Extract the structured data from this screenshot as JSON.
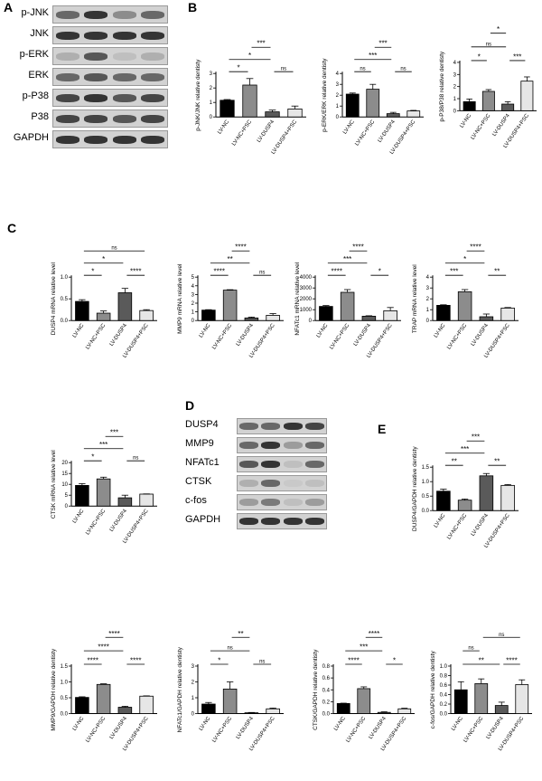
{
  "panels": {
    "A": "A",
    "B": "B",
    "C": "C",
    "D": "D",
    "E": "E"
  },
  "blotA": {
    "rows": [
      "p-JNK",
      "JNK",
      "p-ERK",
      "ERK",
      "p-P38",
      "P38",
      "GAPDH"
    ],
    "lanes": [
      "LV-NC",
      "LV-NC+PSC",
      "LV-DUSP4",
      "LV-DUSP4+PSC"
    ],
    "band_intensity": [
      [
        0.6,
        0.9,
        0.4,
        0.6
      ],
      [
        0.9,
        0.9,
        0.9,
        0.9
      ],
      [
        0.2,
        0.7,
        0.1,
        0.2
      ],
      [
        0.6,
        0.7,
        0.6,
        0.6
      ],
      [
        0.8,
        0.9,
        0.7,
        0.8
      ],
      [
        0.8,
        0.8,
        0.7,
        0.8
      ],
      [
        0.9,
        0.9,
        0.9,
        0.9
      ]
    ]
  },
  "blotD": {
    "rows": [
      "DUSP4",
      "MMP9",
      "NFATc1",
      "CTSK",
      "c-fos",
      "GAPDH"
    ],
    "lanes": [
      "LV-NC",
      "LV-NC+PSC",
      "LV-DUSP4",
      "LV-DUSP4+PSC"
    ],
    "band_intensity": [
      [
        0.6,
        0.6,
        0.9,
        0.8
      ],
      [
        0.6,
        0.9,
        0.3,
        0.6
      ],
      [
        0.7,
        0.9,
        0.1,
        0.6
      ],
      [
        0.2,
        0.6,
        0.05,
        0.1
      ],
      [
        0.3,
        0.5,
        0.1,
        0.3
      ],
      [
        0.9,
        0.9,
        0.9,
        0.9
      ]
    ]
  },
  "chart_data": [
    {
      "id": "b1",
      "type": "bar",
      "ylabel": "p-JNK/JNK relative dentisty",
      "categories": [
        "LV-NC",
        "LV-NC+PSC",
        "LV-DUSP4",
        "LV-DUSP4+PSC"
      ],
      "values": [
        1.15,
        2.2,
        0.35,
        0.55
      ],
      "errors": [
        0.05,
        0.45,
        0.12,
        0.2
      ],
      "ylim": [
        0,
        3
      ],
      "yticks": [
        "0",
        "1",
        "2",
        "3"
      ],
      "sig": [
        [
          "*",
          0,
          1,
          1
        ],
        [
          "*",
          0,
          2,
          2
        ],
        [
          "***",
          1,
          2,
          3
        ],
        [
          "ns",
          2,
          3,
          1
        ]
      ]
    },
    {
      "id": "b2",
      "type": "bar",
      "ylabel": "p-ERK/ERK relative dentisty",
      "categories": [
        "LV-NC",
        "LV-NC+PSC",
        "LV-DUSP4",
        "LV-DUSP4+PSC"
      ],
      "values": [
        2.1,
        2.55,
        0.3,
        0.55
      ],
      "errors": [
        0.1,
        0.45,
        0.12,
        0.05
      ],
      "ylim": [
        0,
        4
      ],
      "yticks": [
        "0",
        "1",
        "2",
        "3",
        "4"
      ],
      "sig": [
        [
          "ns",
          0,
          1,
          1
        ],
        [
          "***",
          0,
          2,
          2
        ],
        [
          "***",
          1,
          2,
          3
        ],
        [
          "ns",
          2,
          3,
          1
        ]
      ]
    },
    {
      "id": "b3",
      "type": "bar",
      "ylabel": "p-P38/P38 relative dentisty",
      "categories": [
        "LV-NC",
        "LV-NC+PSC",
        "LV-DUSP4",
        "LV-DUSP4+PSC"
      ],
      "values": [
        0.75,
        1.6,
        0.55,
        2.45
      ],
      "errors": [
        0.22,
        0.15,
        0.2,
        0.35
      ],
      "ylim": [
        0,
        4
      ],
      "yticks": [
        "0",
        "1",
        "2",
        "3",
        "4"
      ],
      "sig": [
        [
          "*",
          0,
          1,
          1
        ],
        [
          "ns",
          0,
          2,
          2
        ],
        [
          "*",
          1,
          2,
          3
        ],
        [
          "***",
          2,
          3,
          1
        ]
      ]
    },
    {
      "id": "c1",
      "type": "bar",
      "ylabel": "DUSP4 mRNA relative level",
      "categories": [
        "LV-NC",
        "LV-NC+PSC",
        "LV-DUSP4",
        "LV-DUSP4+PSC"
      ],
      "values": [
        0.44,
        0.17,
        0.64,
        0.23
      ],
      "errors": [
        0.04,
        0.05,
        0.1,
        0.02
      ],
      "ylim": [
        0,
        1.0
      ],
      "yticks": [
        "0.0",
        "0.5",
        "1.0"
      ],
      "sig": [
        [
          "*",
          0,
          1,
          1
        ],
        [
          "*",
          0,
          2,
          2
        ],
        [
          "ns",
          0,
          3,
          3
        ],
        [
          "****",
          2,
          3,
          1
        ]
      ]
    },
    {
      "id": "c2",
      "type": "bar",
      "ylabel": "MMP9 mRNA relative level",
      "categories": [
        "LV-NC",
        "LV-NC+PSC",
        "LV-DUSP4",
        "LV-DUSP4+PSC"
      ],
      "values": [
        1.2,
        3.5,
        0.3,
        0.6
      ],
      "errors": [
        0.05,
        0.05,
        0.1,
        0.2
      ],
      "ylim": [
        0,
        5
      ],
      "yticks": [
        "0",
        "1",
        "2",
        "3",
        "4",
        "5"
      ],
      "sig": [
        [
          "****",
          0,
          1,
          1
        ],
        [
          "**",
          0,
          2,
          2
        ],
        [
          "****",
          1,
          2,
          3
        ],
        [
          "ns",
          2,
          3,
          1
        ]
      ]
    },
    {
      "id": "c3",
      "type": "bar",
      "ylabel": "NFATc1 mRNA relative level",
      "categories": [
        "LV-NC",
        "LV-NC+PSC",
        "LV-DUSP4",
        "LV-DUSP4+PSC"
      ],
      "values": [
        1300,
        2600,
        400,
        900
      ],
      "errors": [
        80,
        250,
        40,
        300
      ],
      "ylim": [
        0,
        4000
      ],
      "yticks": [
        "0",
        "1000",
        "2000",
        "3000",
        "4000"
      ],
      "sig": [
        [
          "****",
          0,
          1,
          1
        ],
        [
          "***",
          0,
          2,
          2
        ],
        [
          "****",
          1,
          2,
          3
        ],
        [
          "*",
          2,
          3,
          1
        ]
      ]
    },
    {
      "id": "c4",
      "type": "bar",
      "ylabel": "TRAP mRNA relative level",
      "categories": [
        "LV-NC",
        "LV-NC+PSC",
        "LV-DUSP4",
        "LV-DUSP4+PSC"
      ],
      "values": [
        1.4,
        2.65,
        0.35,
        1.15
      ],
      "errors": [
        0.05,
        0.2,
        0.25,
        0.05
      ],
      "ylim": [
        0,
        4
      ],
      "yticks": [
        "0",
        "1",
        "2",
        "3",
        "4"
      ],
      "sig": [
        [
          "***",
          0,
          1,
          1
        ],
        [
          "*",
          0,
          2,
          2
        ],
        [
          "****",
          1,
          2,
          3
        ],
        [
          "**",
          2,
          3,
          1
        ]
      ]
    },
    {
      "id": "c5",
      "type": "bar",
      "ylabel": "CTSK mRNA relative level",
      "categories": [
        "LV-NC",
        "LV-NC+PSC",
        "LV-DUSP4",
        "LV-DUSP4+PSC"
      ],
      "values": [
        9.5,
        12.5,
        3.8,
        5.5
      ],
      "errors": [
        0.8,
        0.8,
        1.2,
        0.1
      ],
      "ylim": [
        0,
        20
      ],
      "yticks": [
        "0",
        "5",
        "10",
        "15",
        "20"
      ],
      "sig": [
        [
          "*",
          0,
          1,
          1
        ],
        [
          "***",
          0,
          2,
          2
        ],
        [
          "***",
          1,
          2,
          3
        ],
        [
          "ns",
          2,
          3,
          1
        ]
      ]
    },
    {
      "id": "e1",
      "type": "bar",
      "ylabel": "DUSP4/GAPDH relative dentisty",
      "categories": [
        "LV-NC",
        "LV-NC+PSC",
        "LV-DUSP4",
        "LV-DUSP4+PSC"
      ],
      "values": [
        0.67,
        0.36,
        1.2,
        0.87
      ],
      "errors": [
        0.07,
        0.04,
        0.08,
        0.03
      ],
      "ylim": [
        0,
        1.5
      ],
      "yticks": [
        "0.0",
        "0.5",
        "1.0",
        "1.5"
      ],
      "sig": [
        [
          "**",
          0,
          1,
          1
        ],
        [
          "***",
          0,
          2,
          2
        ],
        [
          "***",
          1,
          2,
          3
        ],
        [
          "**",
          2,
          3,
          1
        ]
      ]
    },
    {
      "id": "f1",
      "type": "bar",
      "ylabel": "MMP9/GAPDH relative dentisty",
      "categories": [
        "LV-NC",
        "LV-NC+PSC",
        "LV-DUSP4",
        "LV-DUSP4+PSC"
      ],
      "values": [
        0.51,
        0.92,
        0.2,
        0.55
      ],
      "errors": [
        0.02,
        0.02,
        0.03,
        0.01
      ],
      "ylim": [
        0,
        1.5
      ],
      "yticks": [
        "0.0",
        "0.5",
        "1.0",
        "1.5"
      ],
      "sig": [
        [
          "****",
          0,
          1,
          1
        ],
        [
          "****",
          0,
          2,
          2
        ],
        [
          "****",
          1,
          2,
          3
        ],
        [
          "****",
          2,
          3,
          1
        ]
      ]
    },
    {
      "id": "f2",
      "type": "bar",
      "ylabel": "NFATc1/GAPDH relative dentisty",
      "categories": [
        "LV-NC",
        "LV-NC+PSC",
        "LV-DUSP4",
        "LV-DUSP4+PSC"
      ],
      "values": [
        0.6,
        1.55,
        0.05,
        0.3
      ],
      "errors": [
        0.1,
        0.45,
        0.02,
        0.05
      ],
      "ylim": [
        0,
        3
      ],
      "yticks": [
        "0",
        "1",
        "2",
        "3"
      ],
      "sig": [
        [
          "*",
          0,
          1,
          1
        ],
        [
          "ns",
          0,
          2,
          2
        ],
        [
          "**",
          1,
          2,
          3
        ],
        [
          "ns",
          2,
          3,
          1
        ]
      ]
    },
    {
      "id": "f3",
      "type": "bar",
      "ylabel": "CTSK/GAPDH relative dentisty",
      "categories": [
        "LV-NC",
        "LV-NC+PSC",
        "LV-DUSP4",
        "LV-DUSP4+PSC"
      ],
      "values": [
        0.17,
        0.42,
        0.02,
        0.08
      ],
      "errors": [
        0.005,
        0.03,
        0.01,
        0.01
      ],
      "ylim": [
        0,
        0.8
      ],
      "yticks": [
        "0.0",
        "0.2",
        "0.4",
        "0.6",
        "0.8"
      ],
      "sig": [
        [
          "****",
          0,
          1,
          1
        ],
        [
          "***",
          0,
          2,
          2
        ],
        [
          "****",
          1,
          2,
          3
        ],
        [
          "*",
          2,
          3,
          1
        ]
      ]
    },
    {
      "id": "f4",
      "type": "bar",
      "ylabel": "c-fos/GAPDH relative dentisty",
      "categories": [
        "LV-NC",
        "LV-NC+PSC",
        "LV-DUSP4",
        "LV-DUSP4+PSC"
      ],
      "values": [
        0.5,
        0.63,
        0.17,
        0.61
      ],
      "errors": [
        0.17,
        0.1,
        0.07,
        0.1
      ],
      "ylim": [
        0,
        1.0
      ],
      "yticks": [
        "0.0",
        "0.2",
        "0.4",
        "0.6",
        "0.8",
        "1.0"
      ],
      "sig": [
        [
          "**",
          0,
          2,
          1
        ],
        [
          "ns",
          0,
          1,
          2
        ],
        [
          "****",
          2,
          3,
          1
        ],
        [
          "ns",
          1,
          3,
          3
        ]
      ]
    }
  ]
}
